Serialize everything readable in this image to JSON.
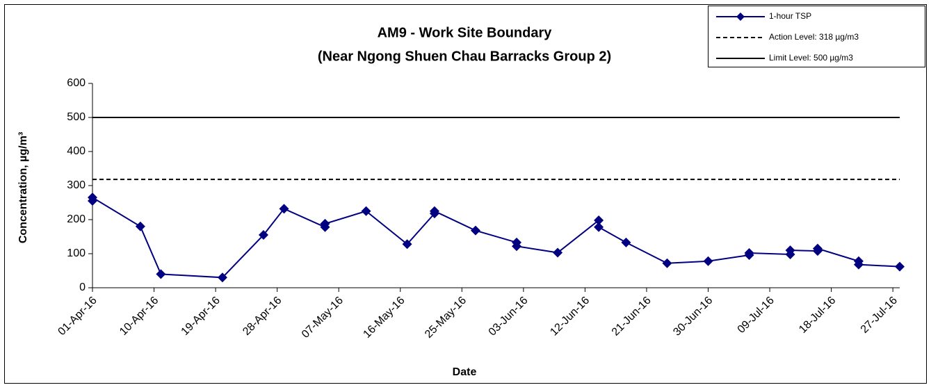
{
  "chart_data": {
    "type": "line",
    "title": [
      "AM9 - Work Site Boundary",
      "(Near Ngong Shuen Chau Barracks Group 2)"
    ],
    "x_label": "Date",
    "y_label": "Concentration, µg/m³",
    "x": [
      "2016-04-01",
      "2016-04-01",
      "2016-04-08",
      "2016-04-11",
      "2016-04-20",
      "2016-04-26",
      "2016-04-29",
      "2016-05-05",
      "2016-05-05",
      "2016-05-11",
      "2016-05-17",
      "2016-05-21",
      "2016-05-21",
      "2016-05-27",
      "2016-06-02",
      "2016-06-02",
      "2016-06-08",
      "2016-06-14",
      "2016-06-14",
      "2016-06-18",
      "2016-06-24",
      "2016-06-30",
      "2016-07-06",
      "2016-07-06",
      "2016-07-12",
      "2016-07-12",
      "2016-07-16",
      "2016-07-16",
      "2016-07-22",
      "2016-07-22",
      "2016-07-28"
    ],
    "series": [
      {
        "name": "1-hour TSP",
        "color": "#000080",
        "values": [
          255,
          265,
          180,
          40,
          30,
          155,
          232,
          178,
          188,
          225,
          128,
          218,
          225,
          168,
          133,
          122,
          103,
          198,
          178,
          133,
          72,
          78,
          96,
          102,
          98,
          110,
          108,
          115,
          78,
          68,
          62
        ]
      }
    ],
    "reference_lines": [
      {
        "name": "Action Level: 318 µg/m3",
        "value": 318,
        "style": "dashed",
        "color": "#000000"
      },
      {
        "name": "Limit Level: 500 µg/m3",
        "value": 500,
        "style": "solid",
        "color": "#000000"
      }
    ],
    "xlim": [
      "2016-04-01",
      "2016-07-28"
    ],
    "xticks": [
      {
        "value": "2016-04-01",
        "label": "01-Apr-16"
      },
      {
        "value": "2016-04-10",
        "label": "10-Apr-16"
      },
      {
        "value": "2016-04-19",
        "label": "19-Apr-16"
      },
      {
        "value": "2016-04-28",
        "label": "28-Apr-16"
      },
      {
        "value": "2016-05-07",
        "label": "07-May-16"
      },
      {
        "value": "2016-05-16",
        "label": "16-May-16"
      },
      {
        "value": "2016-05-25",
        "label": "25-May-16"
      },
      {
        "value": "2016-06-03",
        "label": "03-Jun-16"
      },
      {
        "value": "2016-06-12",
        "label": "12-Jun-16"
      },
      {
        "value": "2016-06-21",
        "label": "21-Jun-16"
      },
      {
        "value": "2016-06-30",
        "label": "30-Jun-16"
      },
      {
        "value": "2016-07-09",
        "label": "09-Jul-16"
      },
      {
        "value": "2016-07-18",
        "label": "18-Jul-16"
      },
      {
        "value": "2016-07-27",
        "label": "27-Jul-16"
      }
    ],
    "ylim": [
      0,
      600
    ],
    "yticks": [
      0,
      100,
      200,
      300,
      400,
      500,
      600
    ],
    "grid": false,
    "legend": "top-right"
  }
}
